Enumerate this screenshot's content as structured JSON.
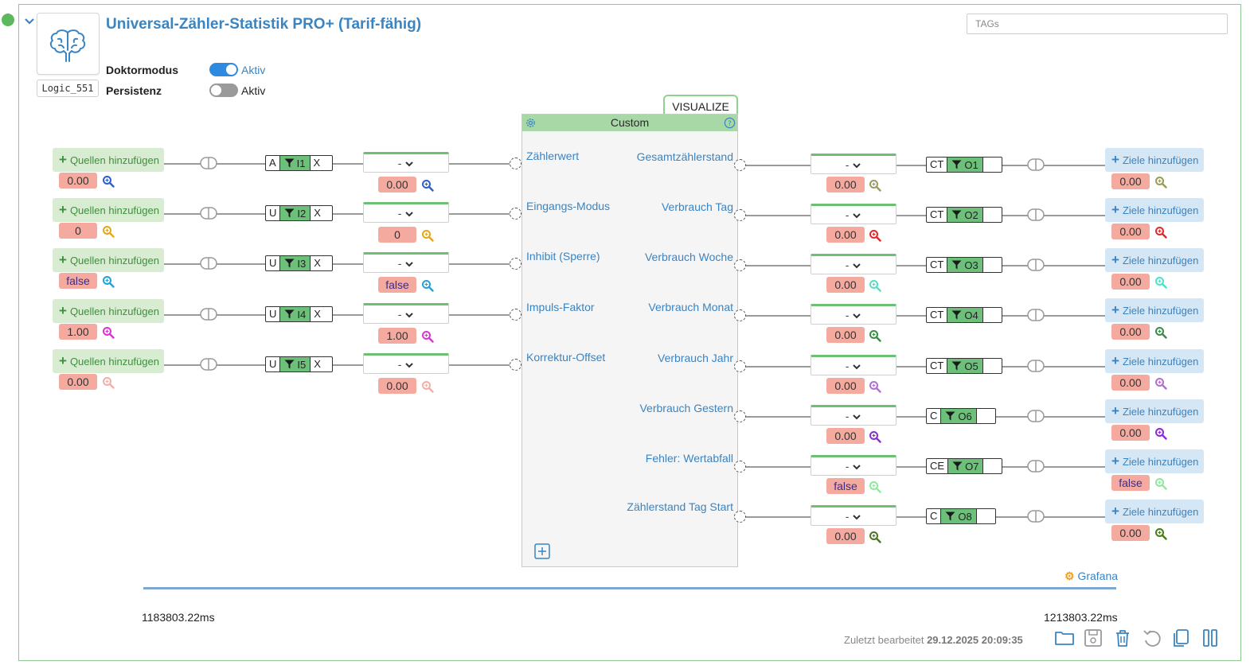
{
  "block": {
    "title": "Universal-Zähler-Statistik PRO+ (Tarif-fähig)",
    "id": "Logic_551",
    "tags_placeholder": "TAGs",
    "options": [
      {
        "label": "Doktormodus",
        "toggle_label": "Aktiv",
        "state": "on"
      },
      {
        "label": "Persistenz",
        "toggle_label": "Aktiv",
        "state": "off"
      }
    ],
    "visualize_label": "VISUALIZE",
    "custom_label": "Custom"
  },
  "inputs": [
    {
      "source_label": "Quellen hinzufügen",
      "value": "0.00",
      "icon_color": "#2b5fd1",
      "mode": "A",
      "port": "I1",
      "has_x": true,
      "dropdown": "-",
      "port_value": "0.00",
      "port_icon_color": "#2b5fd1",
      "port_label": "Zählerwert"
    },
    {
      "source_label": "Quellen hinzufügen",
      "value": "0",
      "icon_color": "#e0a81e",
      "mode": "U",
      "port": "I2",
      "has_x": true,
      "dropdown": "-",
      "port_value": "0",
      "port_icon_color": "#e0a81e",
      "port_label": "Eingangs-Modus"
    },
    {
      "source_label": "Quellen hinzufügen",
      "value": "false",
      "icon_color": "#1ea4d8",
      "mode": "U",
      "port": "I3",
      "has_x": true,
      "dropdown": "-",
      "port_value": "false",
      "port_icon_color": "#1ea4d8",
      "port_label": "Inhibit (Sperre)"
    },
    {
      "source_label": "Quellen hinzufügen",
      "value": "1.00",
      "icon_color": "#e030d8",
      "mode": "U",
      "port": "I4",
      "has_x": true,
      "dropdown": "-",
      "port_value": "1.00",
      "port_icon_color": "#e030d8",
      "port_label": "Impuls-Faktor"
    },
    {
      "source_label": "Quellen hinzufügen",
      "value": "0.00",
      "icon_color": "#f0b0a8",
      "mode": "U",
      "port": "I5",
      "has_x": true,
      "dropdown": "-",
      "port_value": "0.00",
      "port_icon_color": "#f0b0a8",
      "port_label": "Korrektur-Offset"
    }
  ],
  "outputs": [
    {
      "port_label": "Gesamtzählerstand",
      "dropdown": "-",
      "port_value": "0.00",
      "port_icon_color": "#9a9a5a",
      "mode": "CT",
      "port": "O1",
      "target_label": "Ziele hinzufügen",
      "value": "0.00",
      "icon_color": "#9a9a5a"
    },
    {
      "port_label": "Verbrauch Tag",
      "dropdown": "-",
      "port_value": "0.00",
      "port_icon_color": "#e02a2a",
      "mode": "CT",
      "port": "O2",
      "target_label": "Ziele hinzufügen",
      "value": "0.00",
      "icon_color": "#e02a2a"
    },
    {
      "port_label": "Verbrauch Woche",
      "dropdown": "-",
      "port_value": "0.00",
      "port_icon_color": "#4ee0c8",
      "mode": "CT",
      "port": "O3",
      "target_label": "Ziele hinzufügen",
      "value": "0.00",
      "icon_color": "#4ee0c8"
    },
    {
      "port_label": "Verbrauch Monat",
      "dropdown": "-",
      "port_value": "0.00",
      "port_icon_color": "#3a8a4a",
      "mode": "CT",
      "port": "O4",
      "target_label": "Ziele hinzufügen",
      "value": "0.00",
      "icon_color": "#3a8a4a"
    },
    {
      "port_label": "Verbrauch Jahr",
      "dropdown": "-",
      "port_value": "0.00",
      "port_icon_color": "#b070d0",
      "mode": "CT",
      "port": "O5",
      "target_label": "Ziele hinzufügen",
      "value": "0.00",
      "icon_color": "#b070d0"
    },
    {
      "port_label": "Verbrauch Gestern",
      "dropdown": "-",
      "port_value": "0.00",
      "port_icon_color": "#8a2ad8",
      "mode": "C",
      "port": "O6",
      "target_label": "Ziele hinzufügen",
      "value": "0.00",
      "icon_color": "#8a2ad8"
    },
    {
      "port_label": "Fehler: Wertabfall",
      "dropdown": "-",
      "port_value": "false",
      "port_icon_color": "#90e8a0",
      "mode": "CE",
      "port": "O7",
      "target_label": "Ziele hinzufügen",
      "value": "false",
      "icon_color": "#90e8a0"
    },
    {
      "port_label": "Zählerstand Tag Start",
      "dropdown": "-",
      "port_value": "0.00",
      "port_icon_color": "#4a7a1a",
      "mode": "C",
      "port": "O8",
      "target_label": "Ziele hinzufügen",
      "value": "0.00",
      "icon_color": "#4a7a1a"
    }
  ],
  "footer": {
    "grafana_label": "Grafana",
    "time_start": "1183803.22ms",
    "time_end": "1213803.22ms",
    "last_edited_prefix": "Zuletzt bearbeitet",
    "last_edited_value": "29.12.2025 20:09:35"
  },
  "toolbar": [
    {
      "name": "open-folder-icon"
    },
    {
      "name": "save-icon"
    },
    {
      "name": "delete-icon"
    },
    {
      "name": "undo-icon"
    },
    {
      "name": "copy-icon"
    },
    {
      "name": "pause-icon"
    }
  ],
  "colors": {
    "accent": "#3a84c2",
    "success": "#5cb85c",
    "value_bg": "#f5aaa0",
    "filter": "#6cc07a"
  }
}
